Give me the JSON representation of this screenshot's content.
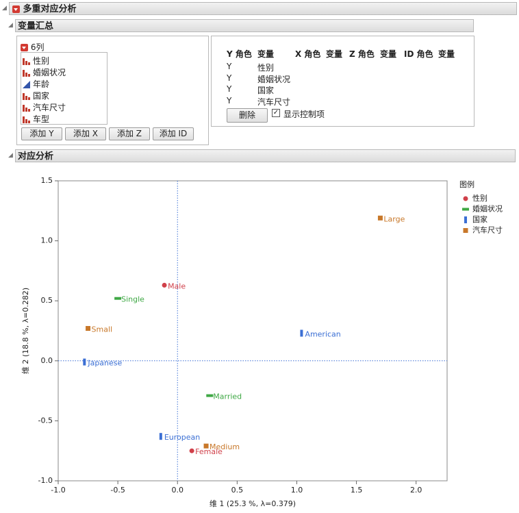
{
  "header": {
    "title": "多重对应分析"
  },
  "summary": {
    "title": "变量汇总",
    "columns_label": "6列",
    "columns": [
      "性别",
      "婚姻状况",
      "年龄",
      "国家",
      "汽车尺寸",
      "车型"
    ],
    "buttons": [
      "添加 Y",
      "添加 X",
      "添加 Z",
      "添加 ID"
    ],
    "roles_header": [
      "Y 角色",
      "变量",
      "X 角色",
      "变量",
      "Z 角色",
      "变量",
      "ID 角色",
      "变量"
    ],
    "roles_rows": [
      [
        "Y",
        "性别"
      ],
      [
        "Y",
        "婚姻状况"
      ],
      [
        "Y",
        "国家"
      ],
      [
        "Y",
        "汽车尺寸"
      ]
    ],
    "remove_button": "删除",
    "show_controls": "显示控制项"
  },
  "analysis": {
    "title": "对应分析"
  },
  "chart_data": {
    "type": "scatter",
    "x_label": "维 1 (25.3 %, λ=0.379)",
    "y_label": "维 2 (18.8 %, λ=0.282)",
    "legend_title": "图例",
    "xlim": [
      -1.0,
      2.26
    ],
    "ylim": [
      -1.0,
      1.5
    ],
    "xticks": [
      {
        "value": -1.0,
        "label": "-1.0"
      },
      -0.5,
      {
        "value": 0.0,
        "label": "0.0"
      },
      0.5,
      {
        "value": 1.0,
        "label": "1.0"
      },
      1.5,
      {
        "value": 2.0,
        "label": "2.0"
      }
    ],
    "yticks": [
      {
        "value": -1.0,
        "label": "-1.0"
      },
      -0.5,
      {
        "value": 0.0,
        "label": "0.0"
      },
      0.5,
      {
        "value": 1.0,
        "label": "1.0"
      },
      1.5
    ],
    "series": [
      {
        "name": "性别",
        "color": "#d0404a",
        "marker": "circle",
        "labels": [
          "Male",
          "Female"
        ],
        "x": [
          -0.11,
          0.12
        ],
        "y": [
          0.63,
          -0.75
        ]
      },
      {
        "name": "婚姻状况",
        "color": "#3fa845",
        "marker": "hbar",
        "labels": [
          "Single",
          "Married"
        ],
        "x": [
          -0.5,
          0.27
        ],
        "y": [
          0.52,
          -0.29
        ]
      },
      {
        "name": "国家",
        "color": "#3b6fd4",
        "marker": "vbar",
        "labels": [
          "Japanese",
          "American",
          "European"
        ],
        "x": [
          -0.78,
          1.04,
          -0.14
        ],
        "y": [
          -0.01,
          0.23,
          -0.63
        ]
      },
      {
        "name": "汽车尺寸",
        "color": "#c8782a",
        "marker": "square",
        "labels": [
          "Small",
          "Large",
          "Medium"
        ],
        "x": [
          -0.75,
          1.7,
          0.24
        ],
        "y": [
          0.27,
          1.19,
          -0.71
        ]
      }
    ]
  }
}
